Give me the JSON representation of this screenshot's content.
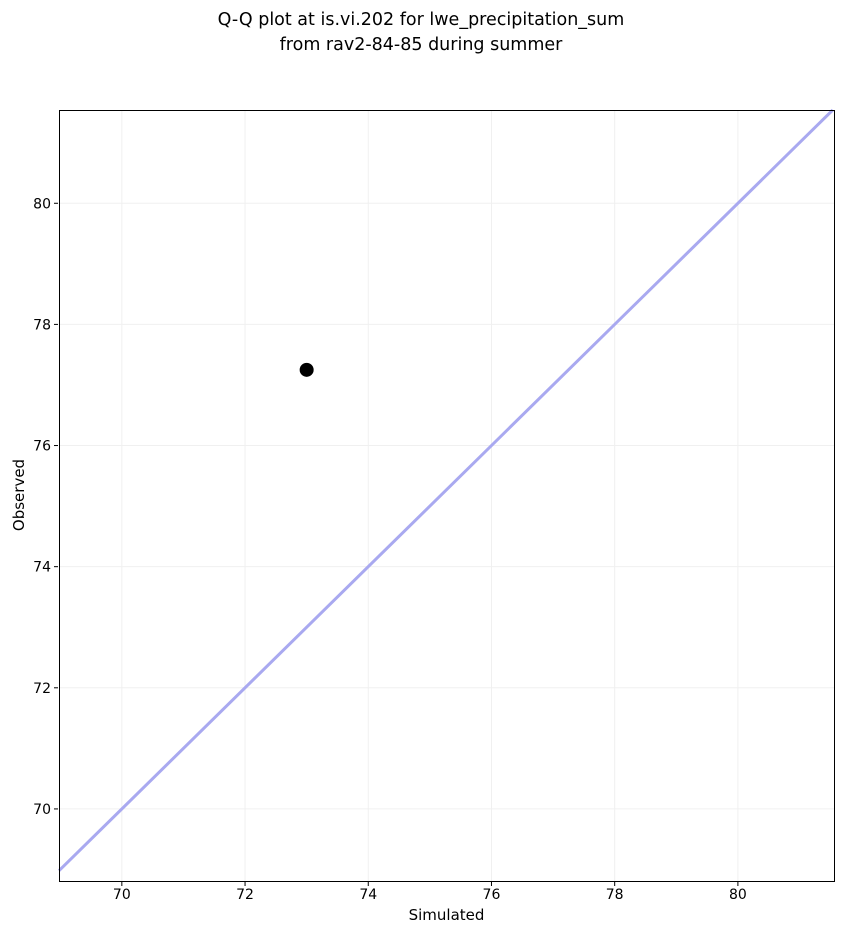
{
  "title": {
    "line1": "Q-Q plot at is.vi.202 for lwe_precipitation_sum",
    "line2": "from rav2-84-85 during summer"
  },
  "chart_data": {
    "type": "scatter",
    "title": "Q-Q plot at is.vi.202 for lwe_precipitation_sum from rav2-84-85 during summer",
    "xlabel": "Simulated",
    "ylabel": "Observed",
    "xlim": [
      68.98,
      81.56
    ],
    "ylim": [
      68.81,
      81.54
    ],
    "xticks": [
      70,
      72,
      74,
      76,
      78,
      80
    ],
    "yticks": [
      70,
      72,
      74,
      76,
      78,
      80
    ],
    "grid": true,
    "legend_position": "none",
    "points": [
      {
        "x": 73.0,
        "y": 77.25
      }
    ],
    "identity_line": {
      "equation": "y = x",
      "color": "#a9a9f0",
      "width": 3
    },
    "style": {
      "point_color": "#000000",
      "point_radius": 7,
      "grid_color": "#f0f0f0",
      "spine_color": "#000000",
      "text_color": "#000000",
      "background": "#ffffff",
      "tick_font_size": 14,
      "label_font_size": 15
    }
  }
}
